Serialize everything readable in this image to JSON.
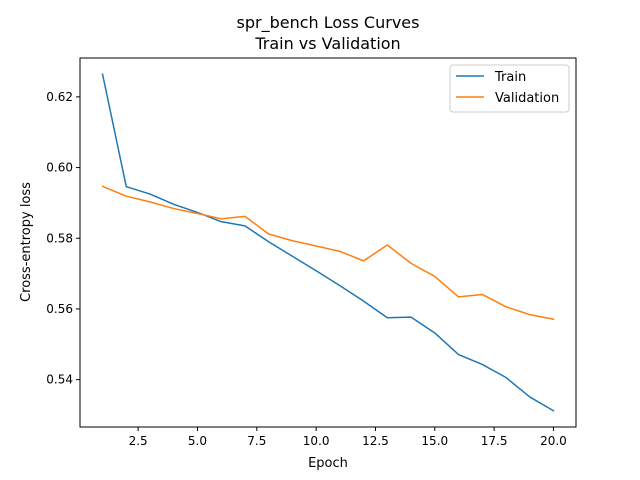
{
  "chart_data": {
    "type": "line",
    "title": "spr_bench Loss Curves",
    "subtitle": "Train vs Validation",
    "xlabel": "Epoch",
    "ylabel": "Cross-entropy loss",
    "xlim": [
      0.05,
      20.95
    ],
    "ylim": [
      0.5266,
      0.631
    ],
    "xticks": [
      2.5,
      5.0,
      7.5,
      10.0,
      12.5,
      15.0,
      17.5,
      20.0
    ],
    "xtick_labels": [
      "2.5",
      "5.0",
      "7.5",
      "10.0",
      "12.5",
      "15.0",
      "17.5",
      "20.0"
    ],
    "yticks": [
      0.54,
      0.56,
      0.58,
      0.6,
      0.62
    ],
    "ytick_labels": [
      "0.54",
      "0.56",
      "0.58",
      "0.60",
      "0.62"
    ],
    "grid": false,
    "legend_position": "top-right",
    "x": [
      1,
      2,
      3,
      4,
      5,
      6,
      7,
      8,
      9,
      10,
      11,
      12,
      13,
      14,
      15,
      16,
      17,
      18,
      19,
      20
    ],
    "series": [
      {
        "name": "Train",
        "color": "#1f77b4",
        "values": [
          0.6264,
          0.5946,
          0.5925,
          0.5896,
          0.5873,
          0.5847,
          0.5835,
          0.579,
          0.5749,
          0.5708,
          0.5666,
          0.5622,
          0.5575,
          0.5577,
          0.5532,
          0.5471,
          0.5443,
          0.5406,
          0.5351,
          0.5312
        ]
      },
      {
        "name": "Validation",
        "color": "#ff7f0e",
        "values": [
          0.5947,
          0.5919,
          0.5903,
          0.5884,
          0.587,
          0.5855,
          0.5862,
          0.5812,
          0.5793,
          0.5778,
          0.5763,
          0.5736,
          0.5781,
          0.5729,
          0.5692,
          0.5634,
          0.5641,
          0.5606,
          0.5584,
          0.5571
        ]
      }
    ]
  }
}
